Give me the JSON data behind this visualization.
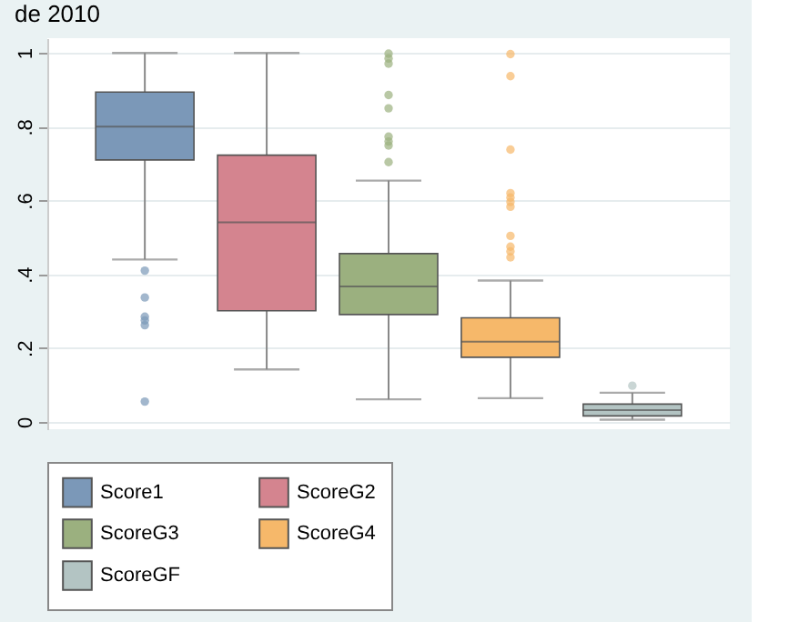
{
  "chart_data": {
    "type": "box",
    "title": "de 2010",
    "ylim": [
      -0.02,
      1.04
    ],
    "yticks": [
      0,
      {
        "value": 0.2,
        "label": ".2"
      },
      {
        "value": 0.4,
        "label": ".4"
      },
      {
        "value": 0.6,
        "label": ".6"
      },
      {
        "value": 0.8,
        "label": ".8"
      },
      1
    ],
    "grid": "y",
    "legend": "bottom",
    "series": [
      {
        "name": "Score1",
        "color": "#7b98b8",
        "boxes": [
          {
            "low": 0.44,
            "q1": 0.71,
            "median": 0.8,
            "q3": 0.894,
            "high": 1.0,
            "outliers": [
              0.41,
              0.337,
              0.285,
              0.275,
              0.262,
              0.055
            ]
          }
        ]
      },
      {
        "name": "ScoreG2",
        "color": "#d4848f",
        "boxes": [
          {
            "low": 0.142,
            "q1": 0.301,
            "median": 0.541,
            "q3": 0.723,
            "high": 1.0
          }
        ]
      },
      {
        "name": "ScoreG3",
        "color": "#9bb07f",
        "boxes": [
          {
            "low": 0.061,
            "q1": 0.291,
            "median": 0.367,
            "q3": 0.456,
            "high": 0.654,
            "outliers": [
              0.998,
              0.985,
              0.971,
              0.886,
              0.85,
              0.773,
              0.76,
              0.749,
              0.704
            ]
          }
        ]
      },
      {
        "name": "ScoreG4",
        "color": "#f6b86a",
        "boxes": [
          {
            "low": 0.064,
            "q1": 0.175,
            "median": 0.217,
            "q3": 0.282,
            "high": 0.383,
            "outliers": [
              0.997,
              0.937,
              0.738,
              0.62,
              0.608,
              0.596,
              0.583,
              0.504,
              0.475,
              0.462,
              0.446
            ]
          }
        ]
      },
      {
        "name": "ScoreGF",
        "color": "#b3c4c3",
        "boxes": [
          {
            "low": 0.006,
            "q1": 0.016,
            "median": 0.032,
            "q3": 0.048,
            "high": 0.079,
            "outliers": [
              0.098
            ]
          }
        ]
      }
    ]
  }
}
